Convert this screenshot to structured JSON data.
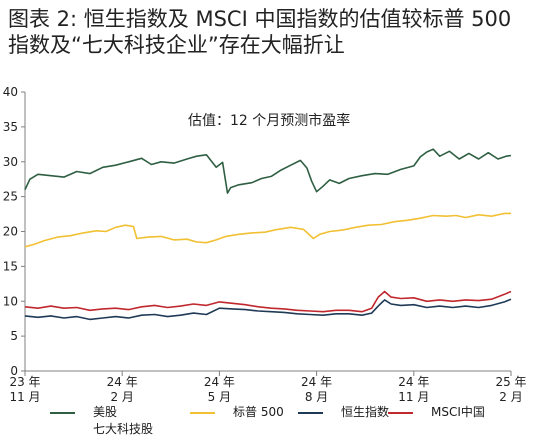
{
  "title": {
    "line1": "图表 2:  恒生指数及 MSCI 中国指数的估值较标普 500",
    "line2": "指数及“七大科技企业”存在大幅折让"
  },
  "chart_data": {
    "type": "line",
    "annotation": "估值：12 个月预测市盈率",
    "ylim": [
      0,
      40
    ],
    "yticks": [
      0,
      5,
      10,
      15,
      20,
      25,
      30,
      35,
      40
    ],
    "xlim": [
      0,
      15
    ],
    "xticks": [
      {
        "x": 0,
        "label": "23 年\n11 月"
      },
      {
        "x": 3,
        "label": "24 年\n2 月"
      },
      {
        "x": 6,
        "label": "24 年\n5 月"
      },
      {
        "x": 9,
        "label": "24 年\n8 月"
      },
      {
        "x": 12,
        "label": "24 年\n11 月"
      },
      {
        "x": 15,
        "label": "25 年\n2 月"
      }
    ],
    "x_unit": "months since Nov 2023",
    "grid": false,
    "legend_position": "bottom",
    "series": [
      {
        "name": "美股\n七大科技股",
        "color": "#2f5f43",
        "points": [
          [
            0,
            26.0
          ],
          [
            0.15,
            27.5
          ],
          [
            0.4,
            28.2
          ],
          [
            0.8,
            28.0
          ],
          [
            1.2,
            27.8
          ],
          [
            1.6,
            28.6
          ],
          [
            2.0,
            28.3
          ],
          [
            2.4,
            29.2
          ],
          [
            2.8,
            29.5
          ],
          [
            3.2,
            30.0
          ],
          [
            3.6,
            30.5
          ],
          [
            3.9,
            29.6
          ],
          [
            4.2,
            30.0
          ],
          [
            4.6,
            29.8
          ],
          [
            5.0,
            30.4
          ],
          [
            5.3,
            30.8
          ],
          [
            5.6,
            31.0
          ],
          [
            5.9,
            29.2
          ],
          [
            6.1,
            29.9
          ],
          [
            6.25,
            25.5
          ],
          [
            6.35,
            26.3
          ],
          [
            6.6,
            26.7
          ],
          [
            7.0,
            27.0
          ],
          [
            7.3,
            27.6
          ],
          [
            7.6,
            27.9
          ],
          [
            7.9,
            28.8
          ],
          [
            8.2,
            29.5
          ],
          [
            8.5,
            30.2
          ],
          [
            8.7,
            29.1
          ],
          [
            8.85,
            27.2
          ],
          [
            9.0,
            25.7
          ],
          [
            9.2,
            26.5
          ],
          [
            9.4,
            27.4
          ],
          [
            9.7,
            26.9
          ],
          [
            10.0,
            27.6
          ],
          [
            10.4,
            28.0
          ],
          [
            10.8,
            28.3
          ],
          [
            11.2,
            28.2
          ],
          [
            11.6,
            28.9
          ],
          [
            12.0,
            29.4
          ],
          [
            12.2,
            30.7
          ],
          [
            12.4,
            31.4
          ],
          [
            12.6,
            31.8
          ],
          [
            12.8,
            30.8
          ],
          [
            13.1,
            31.5
          ],
          [
            13.4,
            30.4
          ],
          [
            13.7,
            31.2
          ],
          [
            14.0,
            30.4
          ],
          [
            14.3,
            31.3
          ],
          [
            14.6,
            30.4
          ],
          [
            14.85,
            30.8
          ],
          [
            15.0,
            30.9
          ]
        ]
      },
      {
        "name": "标普 500",
        "color": "#f2c033",
        "points": [
          [
            0,
            17.8
          ],
          [
            0.3,
            18.2
          ],
          [
            0.6,
            18.7
          ],
          [
            1.0,
            19.2
          ],
          [
            1.4,
            19.4
          ],
          [
            1.8,
            19.8
          ],
          [
            2.2,
            20.1
          ],
          [
            2.5,
            20.0
          ],
          [
            2.8,
            20.6
          ],
          [
            3.1,
            20.9
          ],
          [
            3.35,
            20.7
          ],
          [
            3.45,
            19.0
          ],
          [
            3.8,
            19.2
          ],
          [
            4.2,
            19.3
          ],
          [
            4.6,
            18.8
          ],
          [
            5.0,
            18.9
          ],
          [
            5.3,
            18.5
          ],
          [
            5.6,
            18.4
          ],
          [
            5.9,
            18.8
          ],
          [
            6.2,
            19.3
          ],
          [
            6.6,
            19.6
          ],
          [
            7.0,
            19.8
          ],
          [
            7.4,
            19.9
          ],
          [
            7.8,
            20.3
          ],
          [
            8.2,
            20.6
          ],
          [
            8.6,
            20.3
          ],
          [
            8.9,
            19.0
          ],
          [
            9.1,
            19.6
          ],
          [
            9.4,
            20.0
          ],
          [
            9.8,
            20.2
          ],
          [
            10.2,
            20.6
          ],
          [
            10.6,
            20.9
          ],
          [
            11.0,
            21.0
          ],
          [
            11.4,
            21.4
          ],
          [
            11.8,
            21.6
          ],
          [
            12.2,
            21.9
          ],
          [
            12.6,
            22.3
          ],
          [
            13.0,
            22.2
          ],
          [
            13.3,
            22.3
          ],
          [
            13.6,
            22.0
          ],
          [
            14.0,
            22.4
          ],
          [
            14.4,
            22.2
          ],
          [
            14.8,
            22.6
          ],
          [
            15.0,
            22.6
          ]
        ]
      },
      {
        "name": "恒生指数",
        "color": "#1f3a56",
        "points": [
          [
            0,
            7.9
          ],
          [
            0.4,
            7.7
          ],
          [
            0.8,
            7.9
          ],
          [
            1.2,
            7.6
          ],
          [
            1.6,
            7.8
          ],
          [
            2.0,
            7.4
          ],
          [
            2.4,
            7.6
          ],
          [
            2.8,
            7.8
          ],
          [
            3.2,
            7.6
          ],
          [
            3.6,
            8.0
          ],
          [
            4.0,
            8.1
          ],
          [
            4.4,
            7.8
          ],
          [
            4.8,
            8.0
          ],
          [
            5.2,
            8.3
          ],
          [
            5.6,
            8.1
          ],
          [
            6.0,
            9.0
          ],
          [
            6.4,
            8.9
          ],
          [
            6.8,
            8.8
          ],
          [
            7.2,
            8.6
          ],
          [
            7.6,
            8.5
          ],
          [
            8.0,
            8.4
          ],
          [
            8.4,
            8.2
          ],
          [
            8.8,
            8.1
          ],
          [
            9.2,
            8.0
          ],
          [
            9.6,
            8.2
          ],
          [
            10.0,
            8.2
          ],
          [
            10.4,
            8.0
          ],
          [
            10.7,
            8.3
          ],
          [
            10.9,
            9.3
          ],
          [
            11.1,
            10.2
          ],
          [
            11.3,
            9.6
          ],
          [
            11.6,
            9.4
          ],
          [
            12.0,
            9.5
          ],
          [
            12.4,
            9.1
          ],
          [
            12.8,
            9.3
          ],
          [
            13.2,
            9.1
          ],
          [
            13.6,
            9.3
          ],
          [
            14.0,
            9.1
          ],
          [
            14.4,
            9.4
          ],
          [
            14.8,
            9.9
          ],
          [
            15.0,
            10.3
          ]
        ]
      },
      {
        "name": "MSCI中国",
        "color": "#c0282d",
        "points": [
          [
            0,
            9.2
          ],
          [
            0.4,
            9.0
          ],
          [
            0.8,
            9.3
          ],
          [
            1.2,
            9.0
          ],
          [
            1.6,
            9.1
          ],
          [
            2.0,
            8.7
          ],
          [
            2.4,
            8.9
          ],
          [
            2.8,
            9.0
          ],
          [
            3.2,
            8.8
          ],
          [
            3.6,
            9.2
          ],
          [
            4.0,
            9.4
          ],
          [
            4.4,
            9.1
          ],
          [
            4.8,
            9.3
          ],
          [
            5.2,
            9.6
          ],
          [
            5.6,
            9.4
          ],
          [
            6.0,
            9.9
          ],
          [
            6.4,
            9.7
          ],
          [
            6.8,
            9.5
          ],
          [
            7.2,
            9.2
          ],
          [
            7.6,
            9.0
          ],
          [
            8.0,
            8.9
          ],
          [
            8.4,
            8.7
          ],
          [
            8.8,
            8.6
          ],
          [
            9.2,
            8.5
          ],
          [
            9.6,
            8.7
          ],
          [
            10.0,
            8.7
          ],
          [
            10.4,
            8.5
          ],
          [
            10.7,
            9.0
          ],
          [
            10.9,
            10.6
          ],
          [
            11.1,
            11.4
          ],
          [
            11.3,
            10.6
          ],
          [
            11.6,
            10.4
          ],
          [
            12.0,
            10.5
          ],
          [
            12.4,
            10.0
          ],
          [
            12.8,
            10.2
          ],
          [
            13.2,
            10.0
          ],
          [
            13.6,
            10.2
          ],
          [
            14.0,
            10.1
          ],
          [
            14.4,
            10.3
          ],
          [
            14.8,
            11.0
          ],
          [
            15.0,
            11.4
          ]
        ]
      }
    ]
  }
}
